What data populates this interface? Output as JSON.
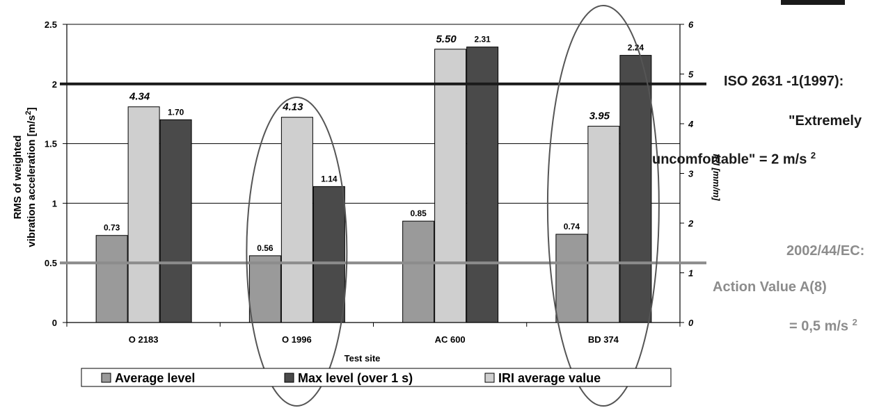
{
  "chart_data": {
    "type": "bar",
    "xlabel": "Test site",
    "ylabel": "RMS of weighted vibration acceleration [m/s",
    "ylabel_sup": "2",
    "ylabel_tail": "]",
    "y2label": "IRI [mm/m]",
    "categories": [
      "O 2183",
      "O 1996",
      "AC 600",
      "BD 374"
    ],
    "ylim": [
      0,
      2.5
    ],
    "yticks": [
      "0",
      "0.5",
      "1",
      "1.5",
      "2",
      "2.5"
    ],
    "y2lim": [
      0,
      6
    ],
    "y2ticks": [
      "0",
      "1",
      "2",
      "3",
      "4",
      "5",
      "6"
    ],
    "series": [
      {
        "name": "Average level",
        "axis": "left",
        "color": "#9a9a9a",
        "values": [
          0.73,
          0.56,
          0.85,
          0.74
        ],
        "labels": [
          "0.73",
          "0.56",
          "0.85",
          "0.74"
        ]
      },
      {
        "name": "IRI average value",
        "axis": "right",
        "color": "#cfcfcf",
        "values": [
          4.34,
          4.13,
          5.5,
          3.95
        ],
        "labels": [
          "4.34",
          "4.13",
          "5.50",
          "3.95"
        ]
      },
      {
        "name": "Max level (over 1 s)",
        "axis": "left",
        "color": "#4a4a4a",
        "values": [
          1.7,
          1.14,
          2.31,
          2.24
        ],
        "labels": [
          "1.70",
          "1.14",
          "2.31",
          "2.24"
        ]
      }
    ],
    "legend": [
      "Average level",
      "Max level (over 1 s)",
      "IRI average value"
    ],
    "legend_position": "bottom",
    "reference_lines": [
      {
        "value": 2.0,
        "color": "#1a1a1a",
        "label": "ISO 2631 -1(1997) extremely uncomfortable"
      },
      {
        "value": 0.5,
        "color": "#8c8c8c",
        "label": "2002/44/EC action value"
      }
    ],
    "highlight_ellipses": [
      "O 1996",
      "BD 374"
    ],
    "grid": true
  },
  "annotations": {
    "iso_line1": "ISO 2631 -1(1997):",
    "iso_line2": "\"Extremely",
    "iso_line3": "uncomfortable\" = 2 m/s",
    "iso_sup": "2",
    "ec_line1": "2002/44/EC:",
    "ec_line2": "Action Value A(8)",
    "ec_line3": "= 0,5 m/s",
    "ec_sup": "2"
  }
}
